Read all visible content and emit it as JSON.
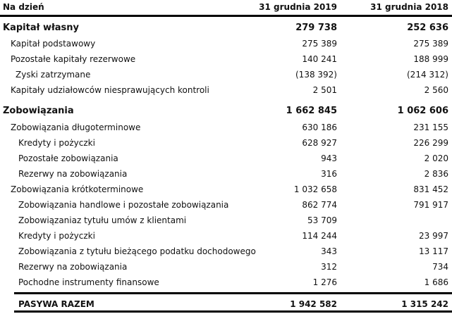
{
  "header": {
    "label": "Na dzień",
    "col1": "31 grudnia 2019",
    "col2": "31 grudnia 2018"
  },
  "rows": [
    {
      "label": "Kapitał własny",
      "v1": "279 738",
      "v2": "252 636",
      "level": 0,
      "bold": true
    },
    {
      "label": "Kapitał podstawowy",
      "v1": "275 389",
      "v2": "275 389",
      "level": 1
    },
    {
      "label": "Pozostałe kapitały rezerwowe",
      "v1": "140 241",
      "v2": "188 999",
      "level": 1
    },
    {
      "label": "Zyski zatrzymane",
      "v1": "(138 392)",
      "v2": "(214 312)",
      "level": 1.5
    },
    {
      "label": "Kapitały udziałowców niesprawujących kontroli",
      "v1": "2 501",
      "v2": "2 560",
      "level": 1
    },
    {
      "label": "Zobowiązania",
      "v1": "1 662 845",
      "v2": "1 062 606",
      "level": 0,
      "bold": true
    },
    {
      "label": "Zobowiązania długoterminowe",
      "v1": "630 186",
      "v2": "231 155",
      "level": 1
    },
    {
      "label": "Kredyty i pożyczki",
      "v1": "628 927",
      "v2": "226 299",
      "level": 2
    },
    {
      "label": "Pozostałe zobowiązania",
      "v1": "943",
      "v2": "2 020",
      "level": 2
    },
    {
      "label": "Rezerwy na zobowiązania",
      "v1": "316",
      "v2": "2 836",
      "level": 2
    },
    {
      "label": "Zobowiązania krótkoterminowe",
      "v1": "1 032 658",
      "v2": "831 452",
      "level": 1
    },
    {
      "label": "Zobowiązania handlowe i pozostałe zobowiązania",
      "v1": "862 774",
      "v2": "791 917",
      "level": 2
    },
    {
      "label": "Zobowiązaniaz tytułu umów z klientami",
      "v1": "53 709",
      "v2": "",
      "level": 2
    },
    {
      "label": "Kredyty i pożyczki",
      "v1": "114 244",
      "v2": "23 997",
      "level": 2
    },
    {
      "label": "Zobowiązania z tytułu bieżącego podatku dochodowego",
      "v1": "343",
      "v2": "13 117",
      "level": 2
    },
    {
      "label": "Rezerwy na zobowiązania",
      "v1": "312",
      "v2": "734",
      "level": 2
    },
    {
      "label": "Pochodne instrumenty finansowe",
      "v1": "1 276",
      "v2": "1 686",
      "level": 2
    }
  ],
  "total": {
    "label": "PASYWA RAZEM",
    "v1": "1 942 582",
    "v2": "1 315 242"
  }
}
